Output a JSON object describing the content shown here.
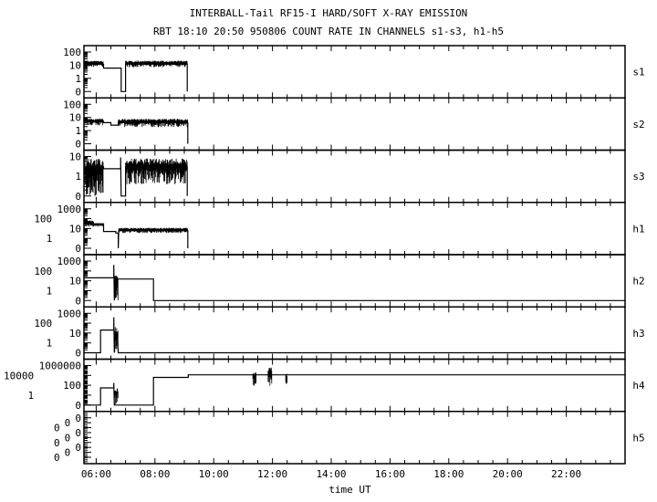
{
  "chart_data": {
    "type": "line",
    "title": "INTERBALL-Tail RF15-I HARD/SOFT X-RAY EMISSION",
    "subtitle": "RBT 18:10 20:50 950806  COUNT RATE IN CHANNELS s1-s3, h1-h5",
    "xlabel": "time UT",
    "xlim": [
      "05:35",
      "24:00"
    ],
    "x_ticks": [
      "06:00",
      "08:00",
      "10:00",
      "12:00",
      "14:00",
      "16:00",
      "18:00",
      "20:00",
      "22:00"
    ],
    "yscale": "log",
    "grid": false,
    "line_color": "#000000",
    "background": "#ffffff",
    "panels": [
      {
        "name": "s1",
        "yticks": [
          "100",
          "10",
          "1",
          "0"
        ],
        "step": [
          [
            "05:35",
            12
          ],
          [
            "06:15",
            12
          ],
          [
            "06:15",
            6
          ],
          [
            "06:51",
            6
          ],
          [
            "06:51",
            0
          ],
          [
            "07:00",
            0
          ],
          [
            "07:00",
            12
          ],
          [
            "09:06",
            12
          ],
          [
            "09:06",
            0
          ]
        ],
        "noise": [
          [
            "05:35",
            "06:15",
            7,
            22
          ],
          [
            "07:00",
            "09:06",
            7,
            22
          ]
        ]
      },
      {
        "name": "s2",
        "yticks": [
          "100",
          "10",
          "1",
          "0"
        ],
        "step": [
          [
            "05:35",
            5
          ],
          [
            "06:15",
            5
          ],
          [
            "06:15",
            4
          ],
          [
            "06:30",
            4
          ],
          [
            "06:30",
            2.6
          ],
          [
            "06:45",
            2.6
          ],
          [
            "06:45",
            4
          ],
          [
            "09:07",
            4
          ],
          [
            "09:07",
            0
          ]
        ],
        "noise": [
          [
            "05:35",
            "06:15",
            2.5,
            8
          ],
          [
            "06:45",
            "09:07",
            1.8,
            8
          ]
        ]
      },
      {
        "name": "s3",
        "yticks": [
          "10",
          "1",
          "0"
        ],
        "step": [
          [
            "05:35",
            3
          ],
          [
            "06:15",
            3
          ],
          [
            "06:15",
            2.4
          ],
          [
            "06:50",
            2.4
          ],
          [
            "06:50",
            9
          ],
          [
            "06:51",
            0
          ],
          [
            "07:00",
            0
          ],
          [
            "07:00",
            3
          ],
          [
            "09:06",
            3
          ],
          [
            "09:06",
            0
          ]
        ],
        "noise": [
          [
            "05:35",
            "06:15",
            0.1,
            8
          ],
          [
            "07:00",
            "09:06",
            0.4,
            8
          ]
        ]
      },
      {
        "name": "h1",
        "yticks": [
          "1000",
          "100",
          "10",
          "1",
          "0"
        ],
        "step": [
          [
            "05:35",
            30
          ],
          [
            "06:15",
            30
          ],
          [
            "06:15",
            5
          ],
          [
            "06:40",
            5
          ],
          [
            "06:40",
            3.5
          ],
          [
            "06:45",
            3.5
          ],
          [
            "06:45",
            0
          ],
          [
            "06:46",
            6
          ],
          [
            "09:07",
            6
          ],
          [
            "09:07",
            0
          ]
        ],
        "noise": [
          [
            "05:35",
            "05:55",
            15,
            70
          ],
          [
            "05:55",
            "06:15",
            15,
            35
          ],
          [
            "06:46",
            "09:07",
            3.5,
            12
          ]
        ]
      },
      {
        "name": "h2",
        "yticks": [
          "1000",
          "100",
          "10",
          "1",
          "0"
        ],
        "step": [
          [
            "05:35",
            20
          ],
          [
            "06:36",
            20
          ],
          [
            "06:36",
            400
          ],
          [
            "06:37",
            0
          ],
          [
            "06:38",
            20
          ],
          [
            "06:45",
            15
          ],
          [
            "07:57",
            15
          ],
          [
            "07:57",
            0
          ],
          [
            "24:00",
            0
          ]
        ],
        "noise": [
          [
            "06:38",
            "06:45",
            0.1,
            50
          ]
        ]
      },
      {
        "name": "h3",
        "yticks": [
          "1000",
          "100",
          "10",
          "1",
          "0"
        ],
        "step": [
          [
            "05:35",
            0
          ],
          [
            "06:09",
            0
          ],
          [
            "06:09",
            20
          ],
          [
            "06:36",
            20
          ],
          [
            "06:36",
            400
          ],
          [
            "06:37",
            0
          ],
          [
            "06:38",
            8
          ],
          [
            "06:43",
            8
          ],
          [
            "06:45",
            0
          ],
          [
            "24:00",
            0
          ]
        ],
        "noise": [
          [
            "06:38",
            "06:45",
            0.1,
            40
          ]
        ]
      },
      {
        "name": "h4",
        "yticks": [
          "1000000",
          "10000",
          "100",
          "1",
          "0"
        ],
        "step": [
          [
            "05:35",
            0
          ],
          [
            "06:09",
            0
          ],
          [
            "06:09",
            30
          ],
          [
            "06:36",
            30
          ],
          [
            "06:36",
            300
          ],
          [
            "06:37",
            0
          ],
          [
            "07:57",
            0
          ],
          [
            "07:57",
            4000
          ],
          [
            "09:08",
            4000
          ],
          [
            "09:08",
            13000
          ],
          [
            "24:00",
            13000
          ]
        ],
        "noise": [
          [
            "06:38",
            "06:45",
            0.01,
            40
          ],
          [
            "11:20",
            "11:27",
            80,
            40000
          ],
          [
            "11:51",
            "11:59",
            50,
            600000
          ],
          [
            "12:27",
            "12:30",
            50,
            30000
          ]
        ]
      },
      {
        "name": "h5",
        "yticks": [
          "0",
          "0",
          "0",
          "0",
          "0",
          "0",
          "0",
          "0",
          "0"
        ],
        "step": [],
        "noise": []
      }
    ]
  }
}
